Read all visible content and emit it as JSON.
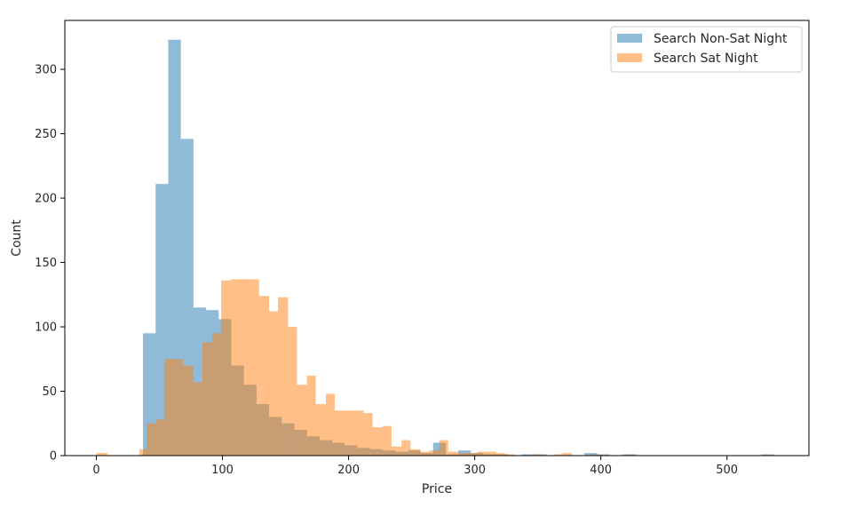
{
  "chart_data": {
    "type": "histogram",
    "xlabel": "Price",
    "ylabel": "Count",
    "xlim": [
      -25,
      565
    ],
    "ylim": [
      0,
      338
    ],
    "xticks": [
      0,
      100,
      200,
      300,
      400,
      500
    ],
    "yticks": [
      0,
      50,
      100,
      150,
      200,
      250,
      300
    ],
    "grid": false,
    "legend_position": "top-right",
    "series": [
      {
        "name": "Search Non-Sat Night",
        "color": "#1f77b4",
        "alpha": 0.5,
        "bins": [
          [
            0,
            10,
            0
          ],
          [
            37,
            47,
            95
          ],
          [
            47,
            57,
            211
          ],
          [
            57,
            67,
            323
          ],
          [
            67,
            77,
            246
          ],
          [
            77,
            87,
            115
          ],
          [
            87,
            97,
            113
          ],
          [
            97,
            107,
            106
          ],
          [
            107,
            117,
            70
          ],
          [
            117,
            127,
            55
          ],
          [
            127,
            137,
            40
          ],
          [
            137,
            147,
            30
          ],
          [
            147,
            157,
            25
          ],
          [
            157,
            167,
            20
          ],
          [
            167,
            177,
            15
          ],
          [
            177,
            187,
            12
          ],
          [
            187,
            197,
            10
          ],
          [
            197,
            207,
            8
          ],
          [
            207,
            217,
            6
          ],
          [
            217,
            227,
            5
          ],
          [
            227,
            237,
            4
          ],
          [
            237,
            247,
            3
          ],
          [
            247,
            257,
            4
          ],
          [
            257,
            267,
            2
          ],
          [
            267,
            277,
            10
          ],
          [
            277,
            287,
            1
          ],
          [
            287,
            297,
            4
          ],
          [
            297,
            307,
            2
          ],
          [
            307,
            317,
            1
          ],
          [
            317,
            327,
            1
          ],
          [
            337,
            347,
            1
          ],
          [
            347,
            357,
            1
          ],
          [
            387,
            397,
            2
          ],
          [
            397,
            407,
            1
          ],
          [
            417,
            427,
            1
          ],
          [
            527,
            537,
            1
          ]
        ]
      },
      {
        "name": "Search Sat Night",
        "color": "#ff7f0e",
        "alpha": 0.5,
        "bins": [
          [
            0,
            9,
            2
          ],
          [
            34,
            40,
            5
          ],
          [
            40,
            47,
            25
          ],
          [
            47,
            54,
            28
          ],
          [
            54,
            62,
            75
          ],
          [
            62,
            69,
            75
          ],
          [
            69,
            77,
            70
          ],
          [
            77,
            84,
            57
          ],
          [
            84,
            92,
            88
          ],
          [
            92,
            99,
            95
          ],
          [
            99,
            107,
            136
          ],
          [
            107,
            114,
            137
          ],
          [
            114,
            122,
            137
          ],
          [
            122,
            129,
            137
          ],
          [
            129,
            137,
            124
          ],
          [
            137,
            144,
            112
          ],
          [
            144,
            152,
            123
          ],
          [
            152,
            159,
            100
          ],
          [
            159,
            167,
            55
          ],
          [
            167,
            174,
            62
          ],
          [
            174,
            182,
            40
          ],
          [
            182,
            189,
            48
          ],
          [
            189,
            197,
            35
          ],
          [
            197,
            204,
            35
          ],
          [
            204,
            212,
            35
          ],
          [
            212,
            219,
            33
          ],
          [
            219,
            227,
            22
          ],
          [
            227,
            234,
            23
          ],
          [
            234,
            242,
            7
          ],
          [
            242,
            249,
            12
          ],
          [
            249,
            257,
            5
          ],
          [
            257,
            264,
            3
          ],
          [
            264,
            272,
            4
          ],
          [
            272,
            279,
            12
          ],
          [
            279,
            287,
            3
          ],
          [
            287,
            294,
            2
          ],
          [
            294,
            302,
            2
          ],
          [
            302,
            309,
            3
          ],
          [
            309,
            317,
            3
          ],
          [
            317,
            324,
            2
          ],
          [
            324,
            332,
            1
          ],
          [
            347,
            354,
            1
          ],
          [
            362,
            369,
            1
          ],
          [
            369,
            377,
            2
          ],
          [
            392,
            399,
            1
          ],
          [
            422,
            429,
            1
          ]
        ]
      }
    ]
  }
}
